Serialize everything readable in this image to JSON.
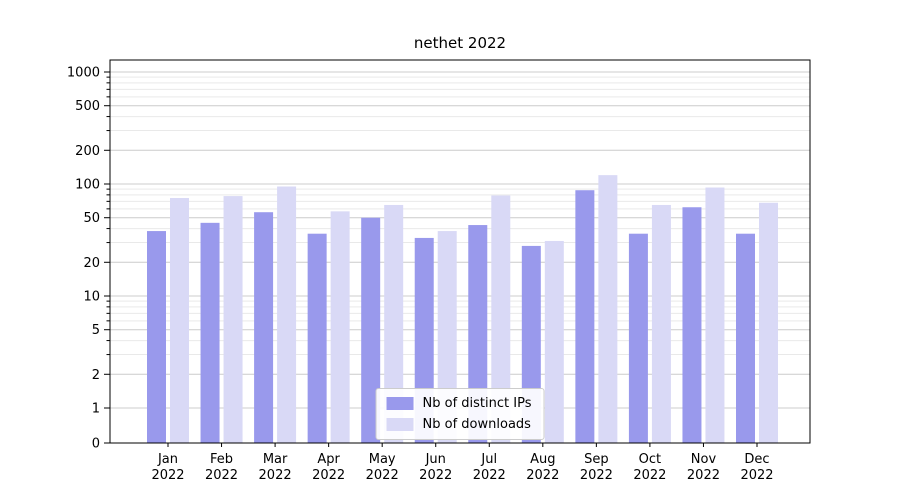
{
  "title": "nethet 2022",
  "chart_data": {
    "type": "bar",
    "scale": "symlog",
    "title": "nethet 2022",
    "categories": [
      "Jan",
      "Feb",
      "Mar",
      "Apr",
      "May",
      "Jun",
      "Jul",
      "Aug",
      "Sep",
      "Oct",
      "Nov",
      "Dec"
    ],
    "year": "2022",
    "series": [
      {
        "name": "Nb of distinct IPs",
        "color": "#9999ec",
        "values": [
          38,
          45,
          56,
          36,
          50,
          33,
          43,
          28,
          88,
          36,
          62,
          36
        ]
      },
      {
        "name": "Nb of downloads",
        "color": "#d9d9f6",
        "values": [
          75,
          78,
          95,
          57,
          65,
          38,
          79,
          31,
          120,
          65,
          93,
          68
        ]
      }
    ],
    "y_ticks": [
      1000,
      500,
      200,
      100,
      50,
      20,
      10,
      5,
      2,
      1,
      0
    ],
    "y_minor_ticks": [
      3,
      4,
      6,
      7,
      8,
      9,
      30,
      40,
      60,
      70,
      80,
      90,
      300,
      400,
      600,
      700,
      800,
      900
    ],
    "ylim": [
      0,
      1300
    ],
    "xlabel": "",
    "ylabel": "",
    "grid": true,
    "legend_position": "lower center"
  },
  "colors": {
    "major_grid": "#cccccc",
    "minor_grid": "#e9e9e9",
    "frame": "#000000",
    "background": "#ffffff"
  }
}
